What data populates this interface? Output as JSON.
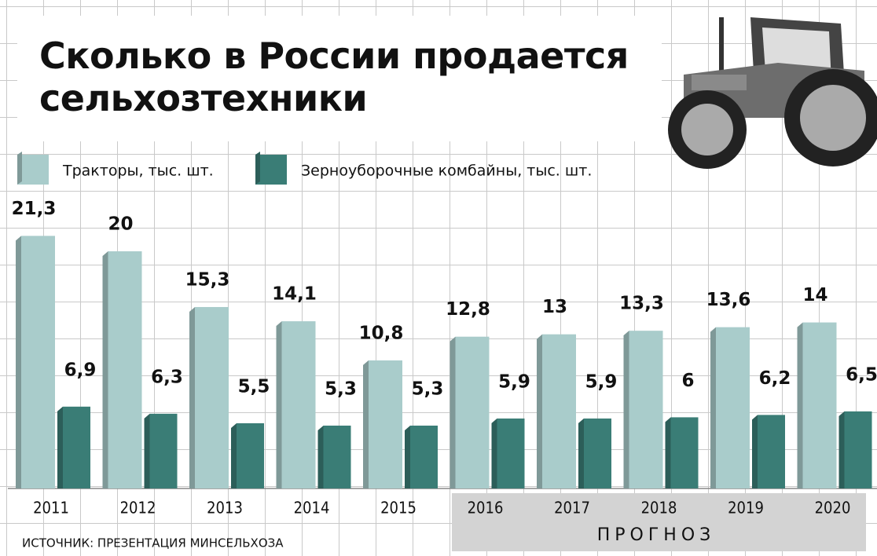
{
  "chart_data": {
    "type": "bar",
    "title": "Сколько в России продается сельхозтехники",
    "categories": [
      "2011",
      "2012",
      "2013",
      "2014",
      "2015",
      "2016",
      "2017",
      "2018",
      "2019",
      "2020"
    ],
    "series": [
      {
        "name": "Тракторы, тыс. шт.",
        "color": "#a9cccb",
        "values": [
          21.3,
          20,
          15.3,
          14.1,
          10.8,
          12.8,
          13,
          13.3,
          13.6,
          14
        ],
        "value_labels": [
          "21,3",
          "20",
          "15,3",
          "14,1",
          "10,8",
          "12,8",
          "13",
          "13,3",
          "13,6",
          "14"
        ]
      },
      {
        "name": "Зерноуборочные комбайны, тыс. шт.",
        "color": "#3a7d76",
        "values": [
          6.9,
          6.3,
          5.5,
          5.3,
          5.3,
          5.9,
          5.9,
          6,
          6.2,
          6.5
        ],
        "value_labels": [
          "6,9",
          "6,3",
          "5,5",
          "5,3",
          "5,3",
          "5,9",
          "5,9",
          "6",
          "6,2",
          "6,5"
        ]
      }
    ],
    "annotation": "ПРОГНОЗ",
    "source": "ИСТОЧНИК: ПРЕЗЕНТАЦИЯ МИНСЕЛЬХОЗА"
  }
}
